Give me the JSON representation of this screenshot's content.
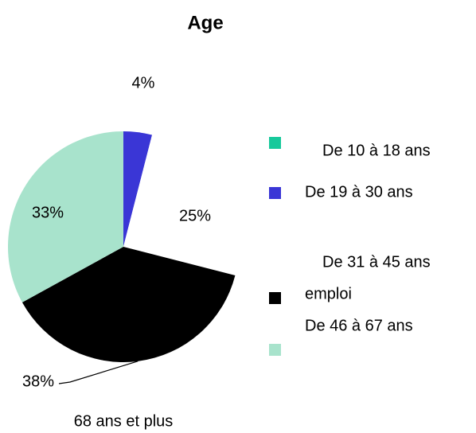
{
  "chart_data": {
    "type": "pie",
    "title": "Age",
    "categories": [
      "De 10 à 18 ans",
      "De 19 à 30 ans",
      "De 31 à 45 ans",
      "emploi",
      "De 46 à 67 ans",
      "68 ans et plus"
    ],
    "values": [
      0,
      4,
      25,
      38,
      33,
      0
    ],
    "value_labels": [
      null,
      "4%",
      "25%",
      "38%",
      "33%",
      null
    ],
    "colors": [
      "#17c99b",
      "#3a36d6",
      "#ffffff",
      "#000000",
      "#a8e3cc",
      null
    ]
  }
}
